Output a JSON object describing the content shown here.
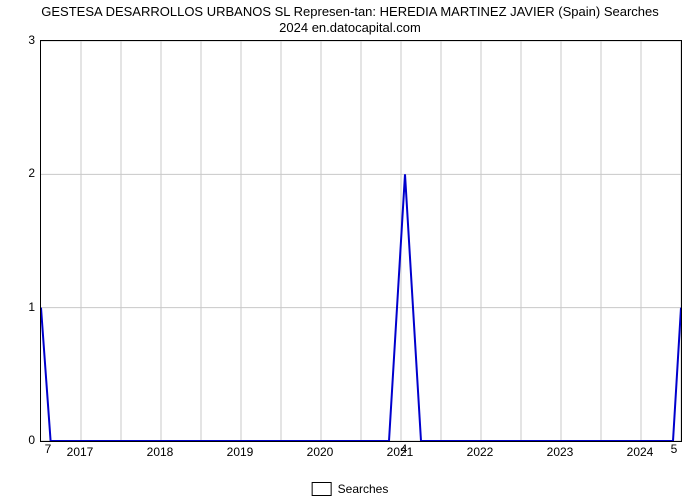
{
  "chart": {
    "type": "line",
    "title_line1": "GESTESA DESARROLLOS URBANOS SL Represen-tan: HEREDIA MARTINEZ JAVIER (Spain) Searches",
    "title_line2": "2024 en.datocapital.com",
    "title_fontsize": 13,
    "x_labels": [
      "2017",
      "2018",
      "2019",
      "2020",
      "2021",
      "2022",
      "2023",
      "2024"
    ],
    "y_ticks": [
      0,
      1,
      2,
      3
    ],
    "ylim": [
      0,
      3
    ],
    "xlim": [
      0,
      8
    ],
    "background_color": "#ffffff",
    "grid_color": "#c8c8c8",
    "border_color": "#000000",
    "line_color": "#0000cd",
    "line_width": 2,
    "legend_label": "Searches",
    "data_points": [
      {
        "x": 0.0,
        "y": 1.0
      },
      {
        "x": 0.12,
        "y": 0.0
      },
      {
        "x": 0.5,
        "y": 0.0
      },
      {
        "x": 1.0,
        "y": 0.0
      },
      {
        "x": 1.5,
        "y": 0.0
      },
      {
        "x": 2.0,
        "y": 0.0
      },
      {
        "x": 2.5,
        "y": 0.0
      },
      {
        "x": 3.0,
        "y": 0.0
      },
      {
        "x": 3.5,
        "y": 0.0
      },
      {
        "x": 4.0,
        "y": 0.0
      },
      {
        "x": 4.35,
        "y": 0.0
      },
      {
        "x": 4.55,
        "y": 2.0
      },
      {
        "x": 4.75,
        "y": 0.0
      },
      {
        "x": 5.0,
        "y": 0.0
      },
      {
        "x": 5.5,
        "y": 0.0
      },
      {
        "x": 6.0,
        "y": 0.0
      },
      {
        "x": 6.5,
        "y": 0.0
      },
      {
        "x": 7.0,
        "y": 0.0
      },
      {
        "x": 7.5,
        "y": 0.0
      },
      {
        "x": 7.9,
        "y": 0.0
      },
      {
        "x": 8.0,
        "y": 1.0
      }
    ],
    "annotations": [
      {
        "text": "7",
        "x": 0.05,
        "y_below": true
      },
      {
        "text": "4",
        "x": 4.55,
        "y_below": true
      },
      {
        "text": "5",
        "x": 8.0,
        "y_below": true
      }
    ],
    "tick_label_fontsize": 12
  }
}
